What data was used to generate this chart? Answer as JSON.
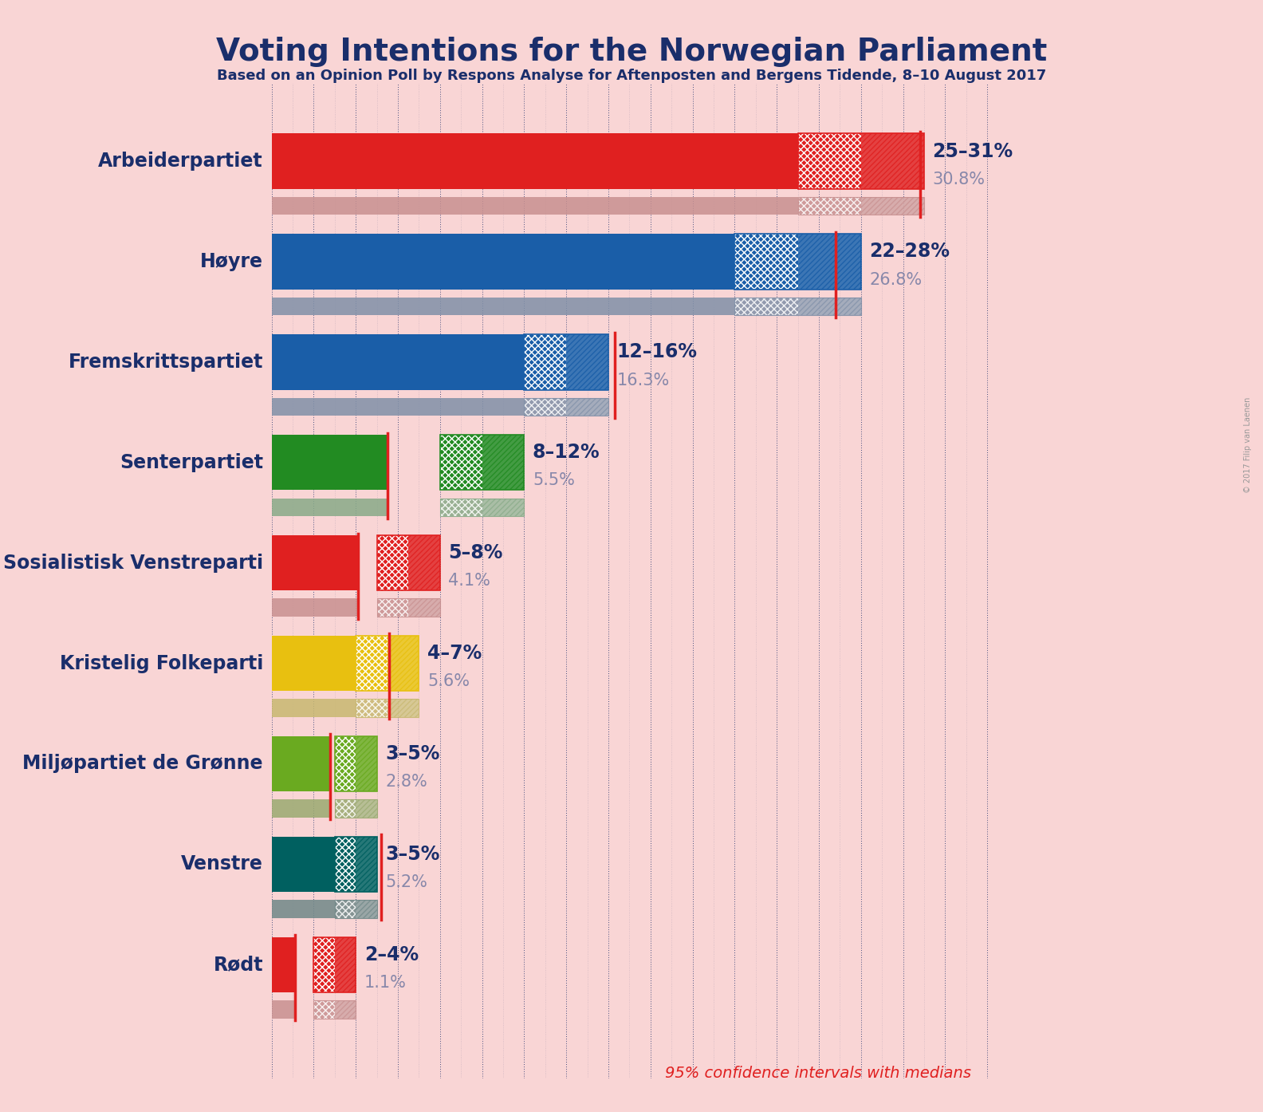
{
  "title": "Voting Intentions for the Norwegian Parliament",
  "subtitle": "Based on an Opinion Poll by Respons Analyse for Aftenposten and Bergens Tidende, 8–10 August 2017",
  "copyright": "© 2017 Filip van Laenen",
  "footer": "95% confidence intervals with medians",
  "background_color": "#f9d5d5",
  "title_color": "#1a2e6b",
  "parties": [
    {
      "name": "Arbeiderpartiet",
      "median": 30.8,
      "ci_low": 25.0,
      "ci_high": 31.0,
      "color": "#e02020",
      "gray_color": "#c89090"
    },
    {
      "name": "Høyre",
      "median": 26.8,
      "ci_low": 22.0,
      "ci_high": 28.0,
      "color": "#1a5ea8",
      "gray_color": "#8090a8"
    },
    {
      "name": "Fremskrittspartiet",
      "median": 16.3,
      "ci_low": 12.0,
      "ci_high": 16.0,
      "color": "#1a5ea8",
      "gray_color": "#8090a8"
    },
    {
      "name": "Senterpartiet",
      "median": 5.5,
      "ci_low": 8.0,
      "ci_high": 12.0,
      "color": "#228b22",
      "gray_color": "#88aa88"
    },
    {
      "name": "Sosialistisk Venstreparti",
      "median": 4.1,
      "ci_low": 5.0,
      "ci_high": 8.0,
      "color": "#e02020",
      "gray_color": "#c89090"
    },
    {
      "name": "Kristelig Folkeparti",
      "median": 5.6,
      "ci_low": 4.0,
      "ci_high": 7.0,
      "color": "#e8c010",
      "gray_color": "#c8b870"
    },
    {
      "name": "Miljøpartiet de Grønne",
      "median": 2.8,
      "ci_low": 3.0,
      "ci_high": 5.0,
      "color": "#6aaa20",
      "gray_color": "#9aaa70"
    },
    {
      "name": "Venstre",
      "median": 5.2,
      "ci_low": 3.0,
      "ci_high": 5.0,
      "color": "#006060",
      "gray_color": "#708888"
    },
    {
      "name": "Rødt",
      "median": 1.1,
      "ci_low": 2.0,
      "ci_high": 4.0,
      "color": "#e02020",
      "gray_color": "#c89090"
    }
  ],
  "ci_labels": [
    "25–31%",
    "22–28%",
    "12–16%",
    "8–12%",
    "5–8%",
    "4–7%",
    "3–5%",
    "3–5%",
    "2–4%"
  ],
  "median_labels": [
    "30.8%",
    "26.8%",
    "16.3%",
    "5.5%",
    "4.1%",
    "5.6%",
    "2.8%",
    "5.2%",
    "1.1%"
  ],
  "x_max": 34,
  "dotted_line_color": "#1a2e6b",
  "median_line_color": "#e02020",
  "gray_bar_color": "#a0a0aa"
}
